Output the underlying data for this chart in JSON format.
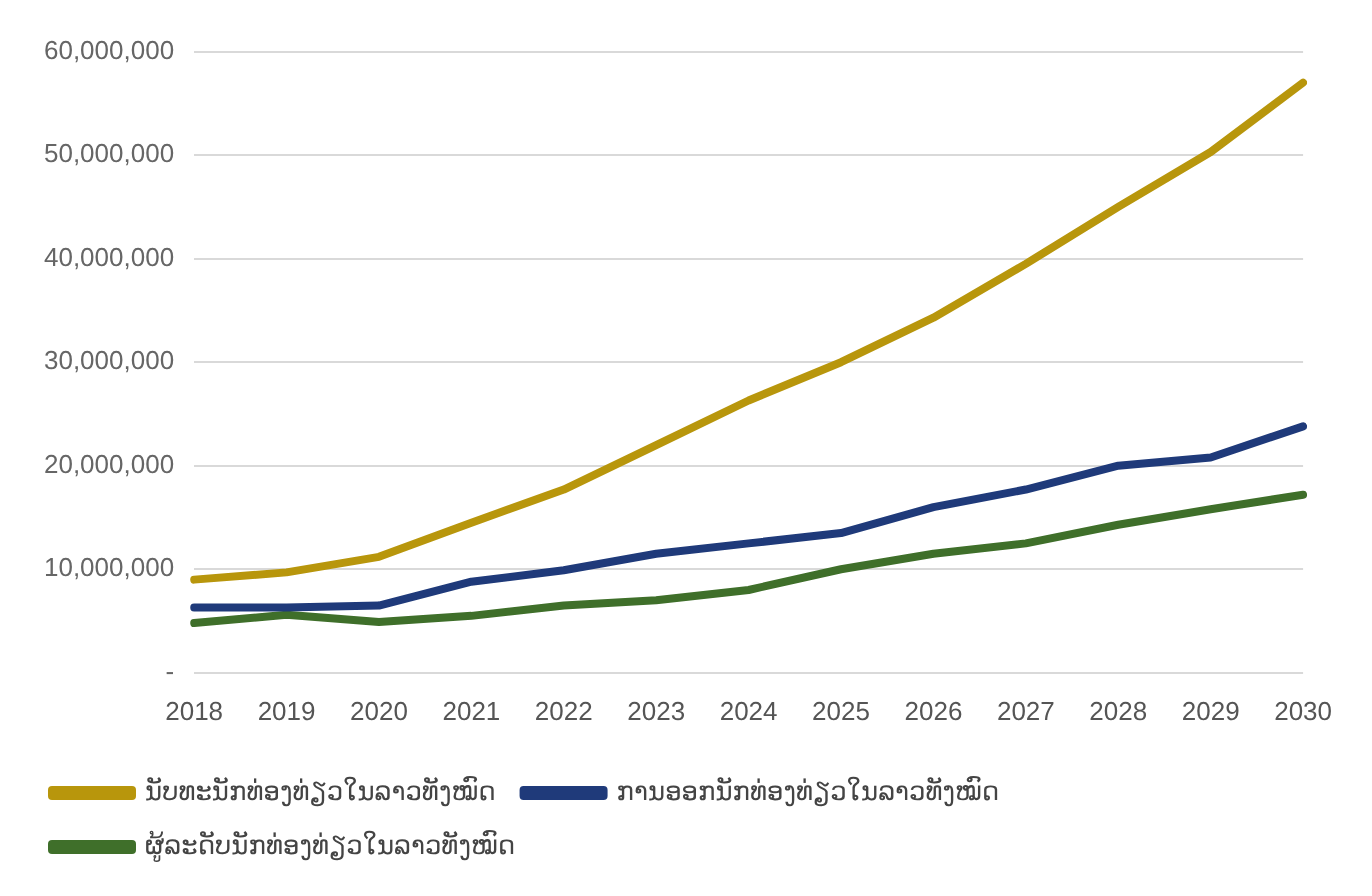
{
  "chart_data": {
    "type": "line",
    "categories": [
      "2018",
      "2019",
      "2020",
      "2021",
      "2022",
      "2023",
      "2024",
      "2025",
      "2026",
      "2027",
      "2028",
      "2029",
      "2030"
    ],
    "series": [
      {
        "name": "ນັບທະນັກທ່ອງທ່ຽວໃນລາວທັງໝົດ",
        "color": "#b8960c",
        "values": [
          9000000,
          9700000,
          11200000,
          14500000,
          17700000,
          22000000,
          26300000,
          30000000,
          34300000,
          39500000,
          45000000,
          50300000,
          57000000
        ]
      },
      {
        "name": "ການອອກນັກທ່ອງທ່ຽວໃນລາວທັງໝົດ",
        "color": "#1f3a7a",
        "values": [
          6300000,
          6300000,
          6500000,
          8800000,
          9900000,
          11500000,
          12500000,
          13500000,
          16000000,
          17700000,
          20000000,
          20800000,
          23800000
        ]
      },
      {
        "name": "ຜູ້ລະດັບນັກທ່ອງທ່ຽວໃນລາວທັງໝົດ",
        "color": "#3f6f2a",
        "values": [
          4800000,
          5600000,
          4900000,
          5500000,
          6500000,
          7000000,
          8000000,
          10000000,
          11500000,
          12500000,
          14300000,
          15800000,
          17200000
        ]
      }
    ],
    "ylim": [
      0,
      60000000
    ],
    "yticks": [
      {
        "value": 0,
        "label": "-"
      },
      {
        "value": 10000000,
        "label": "10,000,000"
      },
      {
        "value": 20000000,
        "label": "20,000,000"
      },
      {
        "value": 30000000,
        "label": "30,000,000"
      },
      {
        "value": 40000000,
        "label": "40,000,000"
      },
      {
        "value": 50000000,
        "label": "50,000,000"
      },
      {
        "value": 60000000,
        "label": "60,000,000"
      }
    ],
    "grid": "y",
    "legend": "bottom",
    "marker": "none",
    "line_style": "solid"
  }
}
